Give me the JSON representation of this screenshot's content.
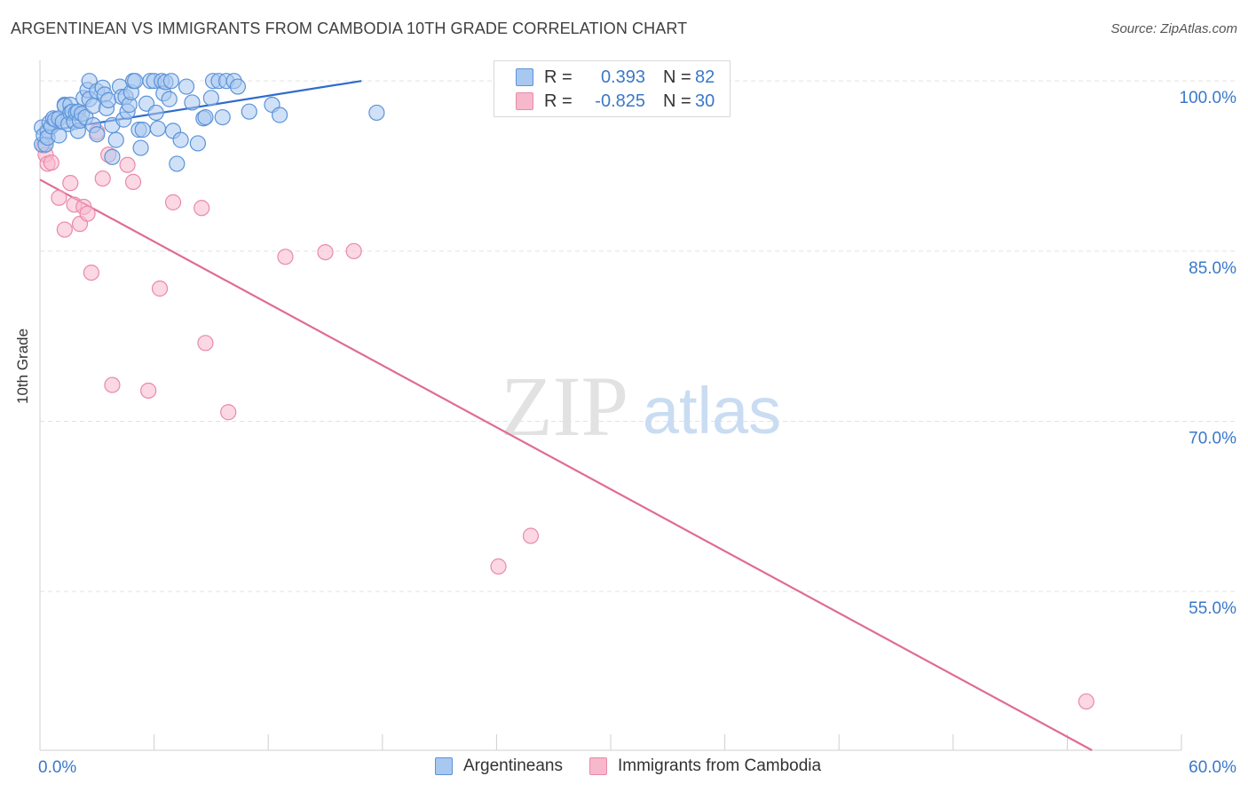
{
  "header": {
    "title": "ARGENTINEAN VS IMMIGRANTS FROM CAMBODIA 10TH GRADE CORRELATION CHART",
    "source": "Source: ZipAtlas.com"
  },
  "watermark": {
    "zip": "ZIP",
    "atlas": "atlas"
  },
  "legend_box": {
    "rows": [
      {
        "r_label": "R =",
        "r_value": "0.393",
        "n_label": "N =",
        "n_value": "82"
      },
      {
        "r_label": "R =",
        "r_value": "-0.825",
        "n_label": "N =",
        "n_value": "30"
      }
    ]
  },
  "bottom_legend": {
    "items": [
      {
        "label": "Argentineans"
      },
      {
        "label": "Immigrants from Cambodia"
      }
    ]
  },
  "colors": {
    "blue_fill": "#a9c8f0",
    "blue_stroke": "#5b93d8",
    "blue_line": "#2f6ccb",
    "pink_fill": "#f7b8cc",
    "pink_stroke": "#e88aa9",
    "pink_line": "#e06b97",
    "grid": "#e3e3e3",
    "axis_text": "#3a78c9"
  },
  "chart_data": {
    "type": "scatter",
    "title": "ARGENTINEAN VS IMMIGRANTS FROM CAMBODIA 10TH GRADE CORRELATION CHART",
    "xlabel": "",
    "ylabel": "10th Grade",
    "xlim": [
      0,
      60
    ],
    "ylim": [
      41.0,
      101.5
    ],
    "x_tick_labels": [
      "0.0%",
      "60.0%"
    ],
    "y_ticks": [
      100,
      85,
      70,
      55
    ],
    "y_tick_labels": [
      "100.0%",
      "85.0%",
      "70.0%",
      "55.0%"
    ],
    "grid": true,
    "legend_position": "top-center",
    "series": [
      {
        "name": "Argentineans",
        "R": 0.393,
        "N": 82,
        "trend": {
          "x": [
            0,
            16.9
          ],
          "y": [
            95.5,
            100.0
          ]
        },
        "points": [
          [
            0.1,
            95.9
          ],
          [
            0.1,
            94.4
          ],
          [
            0.2,
            95.2
          ],
          [
            0.3,
            94.4
          ],
          [
            0.4,
            95.6
          ],
          [
            0.4,
            95.0
          ],
          [
            0.5,
            96.3
          ],
          [
            0.6,
            96.0
          ],
          [
            0.7,
            96.7
          ],
          [
            0.8,
            96.6
          ],
          [
            1.0,
            96.7
          ],
          [
            1.0,
            95.2
          ],
          [
            1.2,
            96.4
          ],
          [
            1.3,
            97.9
          ],
          [
            1.3,
            97.8
          ],
          [
            1.5,
            96.2
          ],
          [
            1.6,
            97.9
          ],
          [
            1.6,
            97.2
          ],
          [
            1.7,
            97.3
          ],
          [
            1.8,
            96.4
          ],
          [
            1.9,
            97.2
          ],
          [
            2.0,
            97.3
          ],
          [
            2.0,
            95.6
          ],
          [
            2.1,
            96.5
          ],
          [
            2.2,
            97.1
          ],
          [
            2.3,
            98.5
          ],
          [
            2.4,
            96.8
          ],
          [
            2.5,
            99.2
          ],
          [
            2.6,
            98.4
          ],
          [
            2.6,
            100.0
          ],
          [
            2.8,
            97.8
          ],
          [
            2.8,
            96.1
          ],
          [
            3.0,
            99.1
          ],
          [
            3.0,
            95.3
          ],
          [
            3.3,
            99.4
          ],
          [
            3.4,
            98.8
          ],
          [
            3.5,
            97.6
          ],
          [
            3.6,
            98.3
          ],
          [
            3.8,
            93.3
          ],
          [
            3.8,
            96.1
          ],
          [
            4.0,
            94.8
          ],
          [
            4.2,
            99.5
          ],
          [
            4.3,
            98.6
          ],
          [
            4.4,
            96.6
          ],
          [
            4.5,
            98.6
          ],
          [
            4.6,
            97.3
          ],
          [
            4.7,
            97.9
          ],
          [
            4.8,
            99.0
          ],
          [
            4.9,
            100.0
          ],
          [
            5.0,
            100.0
          ],
          [
            5.2,
            95.7
          ],
          [
            5.3,
            94.1
          ],
          [
            5.4,
            95.7
          ],
          [
            5.6,
            98.0
          ],
          [
            5.8,
            100.0
          ],
          [
            6.0,
            100.0
          ],
          [
            6.1,
            97.2
          ],
          [
            6.2,
            95.8
          ],
          [
            6.4,
            100.0
          ],
          [
            6.5,
            98.9
          ],
          [
            6.6,
            99.9
          ],
          [
            6.8,
            98.4
          ],
          [
            6.9,
            100.0
          ],
          [
            7.0,
            95.6
          ],
          [
            7.2,
            92.7
          ],
          [
            7.4,
            94.8
          ],
          [
            7.7,
            99.5
          ],
          [
            8.0,
            98.1
          ],
          [
            8.3,
            94.5
          ],
          [
            8.6,
            96.7
          ],
          [
            8.7,
            96.8
          ],
          [
            9.0,
            98.5
          ],
          [
            9.1,
            100.0
          ],
          [
            9.4,
            100.0
          ],
          [
            9.6,
            96.8
          ],
          [
            9.8,
            100.0
          ],
          [
            10.2,
            100.0
          ],
          [
            10.4,
            99.5
          ],
          [
            11.0,
            97.3
          ],
          [
            12.2,
            97.9
          ],
          [
            12.6,
            97.0
          ],
          [
            17.7,
            97.2
          ]
        ]
      },
      {
        "name": "Immigrants from Cambodia",
        "R": -0.825,
        "N": 30,
        "trend": {
          "x": [
            0,
            55.3
          ],
          "y": [
            91.3,
            41.0
          ]
        },
        "points": [
          [
            0.2,
            94.3
          ],
          [
            0.3,
            93.5
          ],
          [
            0.4,
            92.7
          ],
          [
            0.6,
            92.8
          ],
          [
            1.0,
            89.7
          ],
          [
            1.3,
            86.9
          ],
          [
            1.6,
            91.0
          ],
          [
            1.8,
            89.1
          ],
          [
            2.1,
            87.4
          ],
          [
            2.3,
            88.9
          ],
          [
            2.5,
            88.3
          ],
          [
            2.7,
            83.1
          ],
          [
            3.0,
            95.5
          ],
          [
            3.3,
            91.4
          ],
          [
            3.6,
            93.5
          ],
          [
            3.8,
            73.2
          ],
          [
            4.6,
            92.6
          ],
          [
            4.9,
            91.1
          ],
          [
            5.7,
            72.7
          ],
          [
            6.3,
            81.7
          ],
          [
            7.0,
            89.3
          ],
          [
            8.5,
            88.8
          ],
          [
            8.7,
            76.9
          ],
          [
            9.9,
            70.8
          ],
          [
            12.9,
            84.5
          ],
          [
            15.0,
            84.9
          ],
          [
            16.5,
            85.0
          ],
          [
            24.1,
            57.2
          ],
          [
            25.8,
            59.9
          ],
          [
            55.0,
            45.3
          ]
        ]
      }
    ]
  }
}
